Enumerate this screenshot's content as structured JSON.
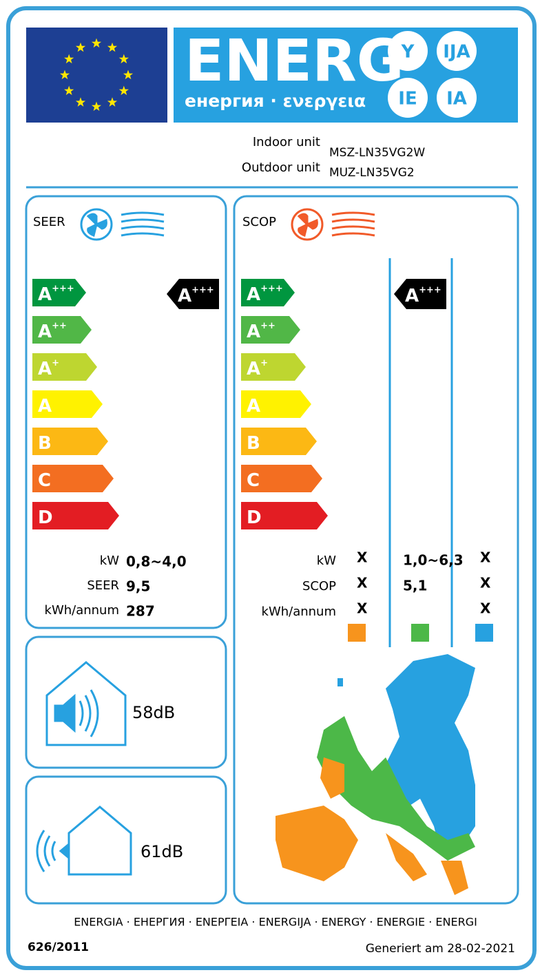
{
  "header": {
    "word": "ENERG",
    "subtitle": "енергия · ενεργεια",
    "suffixes": [
      "Y",
      "IJA",
      "IE",
      "IA"
    ]
  },
  "units": {
    "indoor_label": "Indoor unit",
    "indoor_model": "MSZ-LN35VG2W",
    "outdoor_label": "Outdoor unit",
    "outdoor_model": "MUZ-LN35VG2"
  },
  "classes": [
    {
      "letter": "A",
      "plus": "+++",
      "color": "#00963f"
    },
    {
      "letter": "A",
      "plus": "++",
      "color": "#51b747"
    },
    {
      "letter": "A",
      "plus": "+",
      "color": "#bed630"
    },
    {
      "letter": "A",
      "color": "#fff200"
    },
    {
      "letter": "B",
      "color": "#fcb814"
    },
    {
      "letter": "C",
      "color": "#f36e21"
    },
    {
      "letter": "D",
      "color": "#e31d23"
    }
  ],
  "seer": {
    "title": "SEER",
    "rating": {
      "letter": "A",
      "plus": "+++"
    },
    "rows": [
      {
        "label": "kW",
        "value": "0,8~4,0"
      },
      {
        "label": "SEER",
        "value": "9,5"
      },
      {
        "label": "kWh/annum",
        "value": "287"
      }
    ]
  },
  "scop": {
    "title": "SCOP",
    "rating": {
      "letter": "A",
      "plus": "+++"
    },
    "zones": [
      {
        "color": "#f7941d"
      },
      {
        "color": "#4cb848"
      },
      {
        "color": "#27a1e0"
      }
    ],
    "rows": [
      {
        "label": "kW",
        "cells": [
          "X",
          "1,0~6,3",
          "X"
        ]
      },
      {
        "label": "SCOP",
        "cells": [
          "X",
          "5,1",
          "X"
        ]
      },
      {
        "label": "kWh/annum",
        "cells": [
          "X",
          null,
          "X"
        ]
      }
    ]
  },
  "noise": {
    "indoor": "58dB",
    "outdoor": "61dB"
  },
  "footer": {
    "languages": "ENERGIA · ЕНЕРГИЯ · ΕΝΕΡΓΕΙΑ · ENERGIJA · ENERGY · ENERGIE · ENERGI",
    "regulation": "626/2011",
    "generated": "Generiert am 28-02-2021"
  }
}
